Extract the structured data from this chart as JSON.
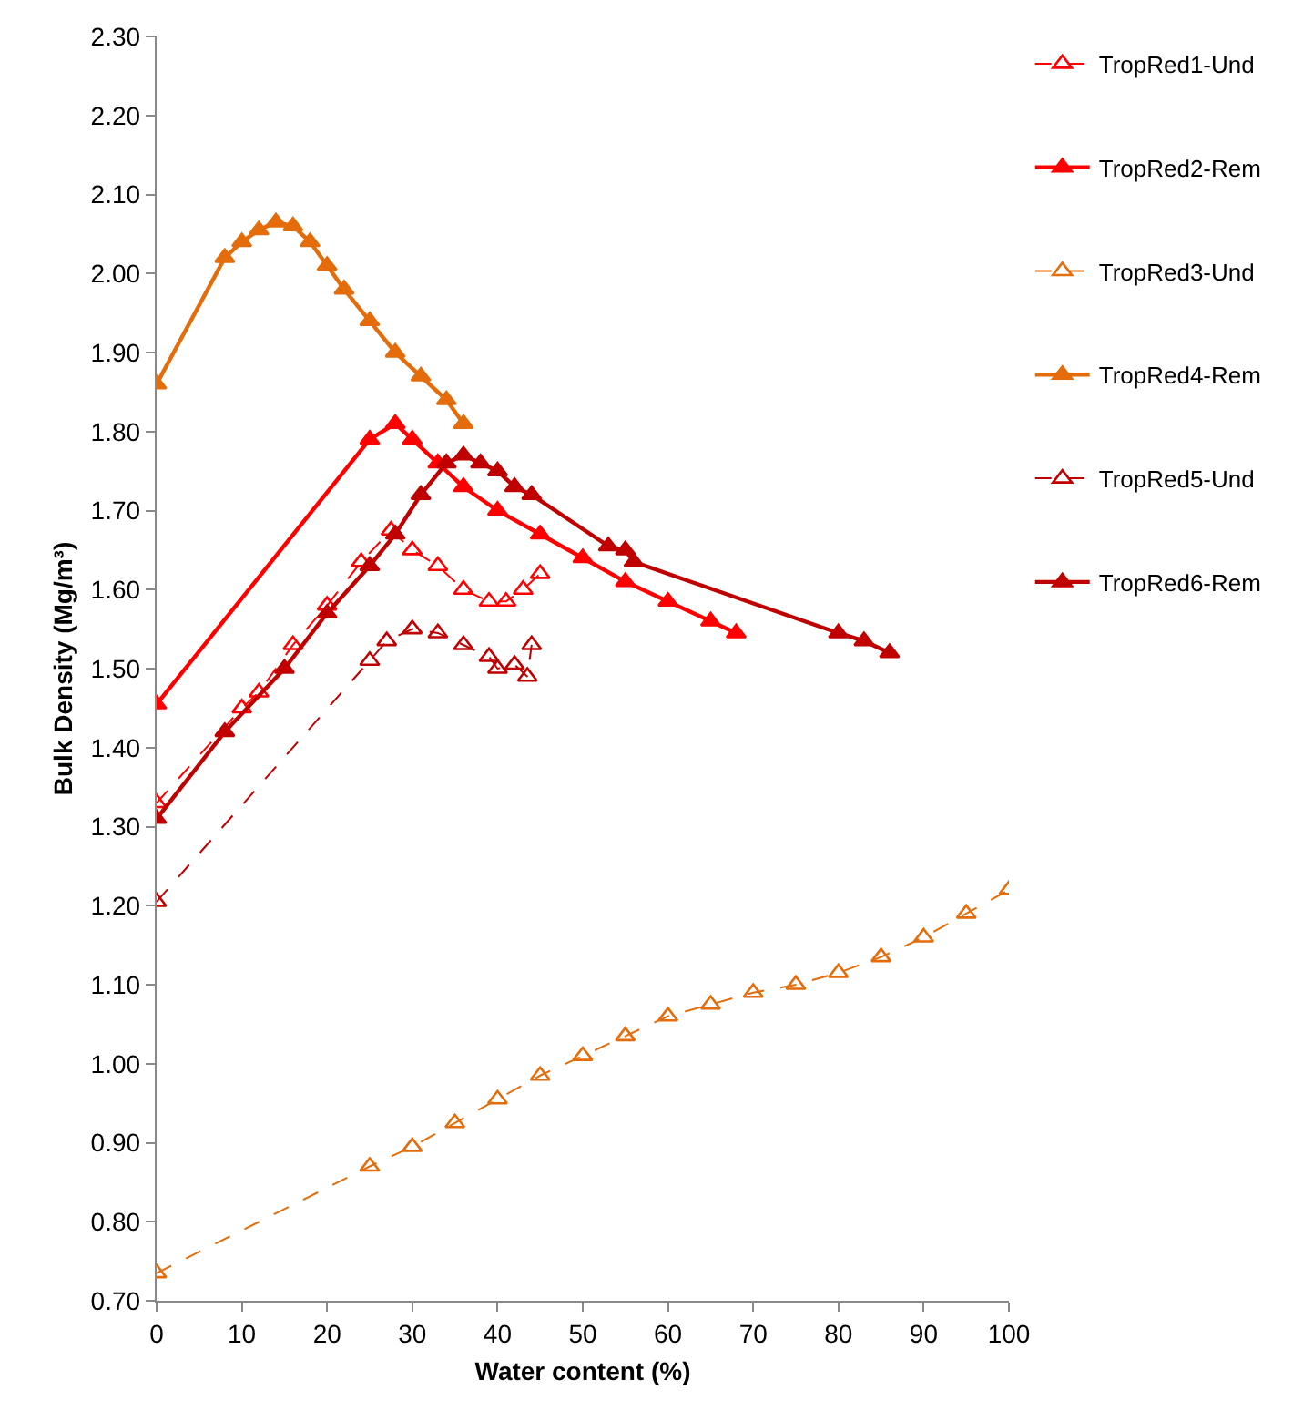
{
  "chart_data": {
    "type": "line",
    "xlabel": "Water content (%)",
    "ylabel": "Bulk Density (Mg/m³)",
    "xlim": [
      0,
      100
    ],
    "xticks": [
      0,
      10,
      20,
      30,
      40,
      50,
      60,
      70,
      80,
      90,
      100
    ],
    "ylim": [
      0.7,
      2.3
    ],
    "yticks": [
      {
        "value": 0.7,
        "label": "0.70"
      },
      {
        "value": 0.8,
        "label": "0.80"
      },
      {
        "value": 0.9,
        "label": "0.90"
      },
      {
        "value": 1.0,
        "label": "1.00"
      },
      {
        "value": 1.1,
        "label": "1.10"
      },
      {
        "value": 1.2,
        "label": "1.20"
      },
      {
        "value": 1.3,
        "label": "1.30"
      },
      {
        "value": 1.4,
        "label": "1.40"
      },
      {
        "value": 1.5,
        "label": "1.50"
      },
      {
        "value": 1.6,
        "label": "1.60"
      },
      {
        "value": 1.7,
        "label": "1.70"
      },
      {
        "value": 1.8,
        "label": "1.80"
      },
      {
        "value": 1.9,
        "label": "1.90"
      },
      {
        "value": 2.0,
        "label": "2.00"
      },
      {
        "value": 2.1,
        "label": "2.10"
      },
      {
        "value": 2.2,
        "label": "2.20"
      },
      {
        "value": 2.3,
        "label": "2.30"
      }
    ],
    "legend": "right",
    "marker": "triangle",
    "series": [
      {
        "name": "TropRed1-Und",
        "color": "#ff0000",
        "line_style": "dashed",
        "x": [
          0,
          10,
          12,
          16,
          20,
          24,
          27.5,
          30,
          33,
          36,
          39,
          41,
          43,
          45
        ],
        "values": [
          1.33,
          1.45,
          1.47,
          1.53,
          1.58,
          1.635,
          1.675,
          1.65,
          1.63,
          1.6,
          1.585,
          1.585,
          1.6,
          1.62
        ]
      },
      {
        "name": "TropRed2-Rem",
        "color": "#ff0000",
        "line_style": "solid",
        "x": [
          0,
          25,
          28,
          30,
          33,
          36,
          40,
          45,
          50,
          55,
          60,
          65,
          68
        ],
        "values": [
          1.455,
          1.79,
          1.81,
          1.79,
          1.76,
          1.73,
          1.7,
          1.67,
          1.64,
          1.61,
          1.585,
          1.56,
          1.545
        ]
      },
      {
        "name": "TropRed3-Und",
        "color": "#e46c0a",
        "line_style": "dashed",
        "x": [
          0,
          25,
          30,
          35,
          40,
          45,
          50,
          55,
          60,
          65,
          70,
          75,
          80,
          85,
          90,
          95,
          100
        ],
        "values": [
          0.735,
          0.87,
          0.895,
          0.925,
          0.955,
          0.985,
          1.01,
          1.035,
          1.06,
          1.075,
          1.09,
          1.1,
          1.115,
          1.135,
          1.16,
          1.19,
          1.22
        ]
      },
      {
        "name": "TropRed4-Rem",
        "color": "#e46c0a",
        "line_style": "solid",
        "x": [
          0,
          8,
          10,
          12,
          14,
          16,
          18,
          20,
          22,
          25,
          28,
          31,
          34,
          36
        ],
        "values": [
          1.86,
          2.02,
          2.04,
          2.055,
          2.065,
          2.06,
          2.04,
          2.01,
          1.98,
          1.94,
          1.9,
          1.87,
          1.84,
          1.81
        ]
      },
      {
        "name": "TropRed5-Und",
        "color": "#c00000",
        "line_style": "dashed",
        "x": [
          0,
          25,
          27,
          30,
          33,
          36,
          39,
          40,
          42,
          43.5,
          44
        ],
        "values": [
          1.205,
          1.51,
          1.535,
          1.55,
          1.545,
          1.53,
          1.515,
          1.5,
          1.505,
          1.49,
          1.53
        ]
      },
      {
        "name": "TropRed6-Rem",
        "color": "#c00000",
        "line_style": "solid",
        "x": [
          0,
          8,
          15,
          20,
          25,
          28,
          31,
          34,
          36,
          38,
          40,
          42,
          44,
          53,
          55,
          56,
          80,
          83,
          86
        ],
        "values": [
          1.31,
          1.42,
          1.5,
          1.57,
          1.63,
          1.67,
          1.72,
          1.76,
          1.77,
          1.76,
          1.75,
          1.73,
          1.72,
          1.655,
          1.65,
          1.635,
          1.545,
          1.535,
          1.52
        ]
      }
    ]
  }
}
